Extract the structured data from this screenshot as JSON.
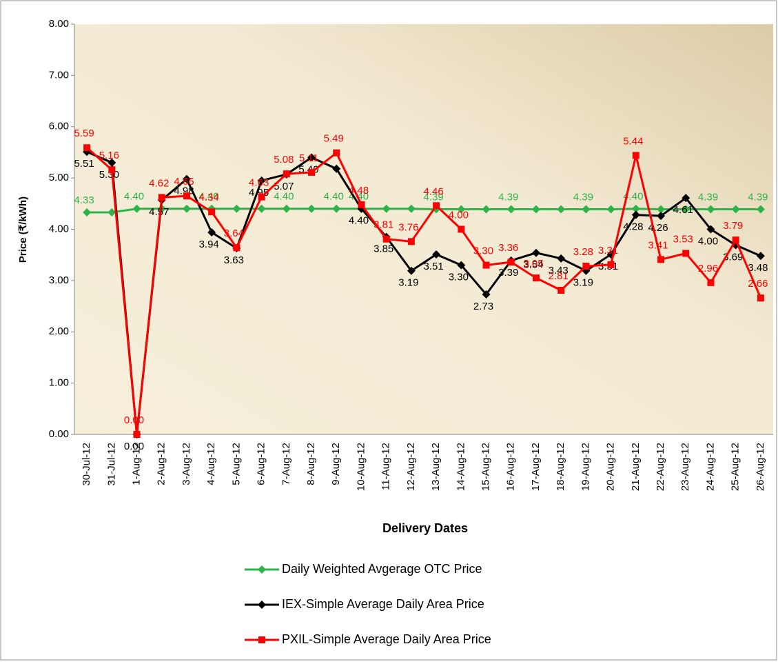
{
  "chart_data": {
    "type": "line",
    "x_label": "Delivery Dates",
    "y_label": "Price (₹/kWh)",
    "categories": [
      "30-Jul-12",
      "31-Jul-12",
      "1-Aug-12",
      "2-Aug-12",
      "3-Aug-12",
      "4-Aug-12",
      "5-Aug-12",
      "6-Aug-12",
      "7-Aug-12",
      "8-Aug-12",
      "9-Aug-12",
      "10-Aug-12",
      "11-Aug-12",
      "12-Aug-12",
      "13-Aug-12",
      "14-Aug-12",
      "15-Aug-12",
      "16-Aug-12",
      "17-Aug-12",
      "18-Aug-12",
      "19-Aug-12",
      "20-Aug-12",
      "21-Aug-12",
      "22-Aug-12",
      "23-Aug-12",
      "24-Aug-12",
      "25-Aug-12",
      "26-Aug-12"
    ],
    "ylim": [
      0,
      8
    ],
    "yticks": [
      {
        "value": 0,
        "label": "0.00"
      },
      {
        "value": 1,
        "label": "1.00"
      },
      {
        "value": 2,
        "label": "2.00"
      },
      {
        "value": 3,
        "label": "3.00"
      },
      {
        "value": 4,
        "label": "4.00"
      },
      {
        "value": 5,
        "label": "5.00"
      },
      {
        "value": 6,
        "label": "6.00"
      },
      {
        "value": 7,
        "label": "7.00"
      },
      {
        "value": 8,
        "label": "8.00"
      }
    ],
    "series": [
      {
        "name": "Daily Weighted Avgerage OTC Price",
        "color": "#2db34a",
        "marker": "diamond",
        "values": [
          4.33,
          4.33,
          4.4,
          4.4,
          4.4,
          4.4,
          4.4,
          4.4,
          4.4,
          4.4,
          4.4,
          4.4,
          4.4,
          4.4,
          4.39,
          4.39,
          4.39,
          4.39,
          4.39,
          4.39,
          4.39,
          4.39,
          4.4,
          4.39,
          4.39,
          4.39,
          4.39,
          4.39
        ],
        "value_labels": [
          "4.33",
          null,
          "4.40",
          null,
          null,
          "4.40",
          null,
          null,
          "4.40",
          null,
          "4.40",
          "4.40",
          null,
          null,
          "4.39",
          null,
          null,
          "4.39",
          null,
          null,
          "4.39",
          null,
          "4.40",
          null,
          null,
          "4.39",
          null,
          "4.39"
        ]
      },
      {
        "name": "IEX-Simple Average Daily Area Price",
        "color": "#000000",
        "marker": "diamond",
        "values": [
          5.51,
          5.3,
          0,
          4.57,
          4.98,
          3.94,
          3.63,
          4.95,
          5.07,
          5.4,
          5.18,
          4.4,
          3.85,
          3.19,
          3.51,
          3.3,
          2.73,
          3.39,
          3.54,
          3.43,
          3.19,
          3.51,
          4.28,
          4.26,
          4.61,
          4,
          3.69,
          3.48
        ],
        "value_labels": [
          "5.51",
          "5.30",
          "0.00",
          "4.57",
          "4.98",
          "3.94",
          "3.63",
          "4.95",
          "5.07",
          "5.40",
          null,
          "4.40",
          "3.85",
          "3.19",
          "3.51",
          "3.30",
          "2.73",
          "3.39",
          "3.54",
          "3.43",
          "3.19",
          "3.51",
          "4.28",
          "4.26",
          "4.61",
          "4.00",
          "3.69",
          "3.48"
        ]
      },
      {
        "name": "PXIL-Simple Average Daily Area Price",
        "color": "#ff0000",
        "marker": "square",
        "values": [
          5.59,
          5.16,
          0,
          4.62,
          4.65,
          4.34,
          3.64,
          4.63,
          5.08,
          5.11,
          5.49,
          4.48,
          3.81,
          3.76,
          4.46,
          4,
          3.3,
          3.36,
          3.05,
          2.81,
          3.28,
          3.31,
          5.44,
          3.41,
          3.53,
          2.96,
          3.79,
          2.66
        ],
        "value_labels": [
          "5.59",
          "5.16",
          "0.00",
          "4.62",
          "4.65",
          "4.34",
          "3.64",
          "4.63",
          "5.08",
          "5.11",
          "5.49",
          "4.48",
          "3.81",
          "3.76",
          "4.46",
          "4.00",
          "3.30",
          "3.36",
          "3.05",
          "2.81",
          "3.28",
          "3.31",
          "5.44",
          "3.41",
          "3.53",
          "2.96",
          "3.79",
          "2.66"
        ]
      }
    ]
  }
}
